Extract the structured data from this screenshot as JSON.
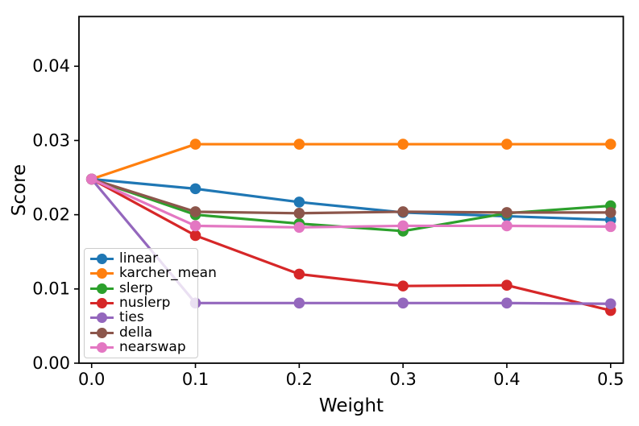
{
  "figure": {
    "background": "#ffffff",
    "frame_color": "#000000",
    "text_color": "#000000"
  },
  "chart_data": {
    "type": "line",
    "xlabel": "Weight",
    "ylabel": "Score",
    "x": [
      0.0,
      0.1,
      0.2,
      0.3,
      0.4,
      0.5
    ],
    "xtick_labels": [
      "0.0",
      "0.1",
      "0.2",
      "0.3",
      "0.4",
      "0.5"
    ],
    "ytick_values": [
      0.0,
      0.01,
      0.02,
      0.03,
      0.04
    ],
    "ytick_labels": [
      "0.00",
      "0.01",
      "0.02",
      "0.03",
      "0.04"
    ],
    "xlim": [
      -0.0122,
      0.5122
    ],
    "ylim": [
      0,
      0.0467
    ],
    "grid": false,
    "legend_position": "lower left",
    "marker": "o",
    "series": [
      {
        "name": "linear",
        "color": "#1f77b4",
        "values": [
          0.0248,
          0.0235,
          0.0217,
          0.0203,
          0.0198,
          0.0193
        ]
      },
      {
        "name": "karcher_mean",
        "color": "#ff7f0e",
        "values": [
          0.0248,
          0.0295,
          0.0295,
          0.0295,
          0.0295,
          0.0295
        ]
      },
      {
        "name": "slerp",
        "color": "#2ca02c",
        "values": [
          0.0248,
          0.02,
          0.0188,
          0.0178,
          0.0202,
          0.0212
        ]
      },
      {
        "name": "nuslerp",
        "color": "#d62728",
        "values": [
          0.0248,
          0.0172,
          0.012,
          0.0104,
          0.0105,
          0.0071
        ]
      },
      {
        "name": "ties",
        "color": "#9467bd",
        "values": [
          0.0248,
          0.0081,
          0.0081,
          0.0081,
          0.0081,
          0.008
        ]
      },
      {
        "name": "della",
        "color": "#8c564b",
        "values": [
          0.0248,
          0.0204,
          0.0202,
          0.0204,
          0.0203,
          0.0203
        ]
      },
      {
        "name": "nearswap",
        "color": "#e377c2",
        "values": [
          0.0248,
          0.0185,
          0.0183,
          0.0185,
          0.0185,
          0.0184
        ]
      }
    ]
  }
}
